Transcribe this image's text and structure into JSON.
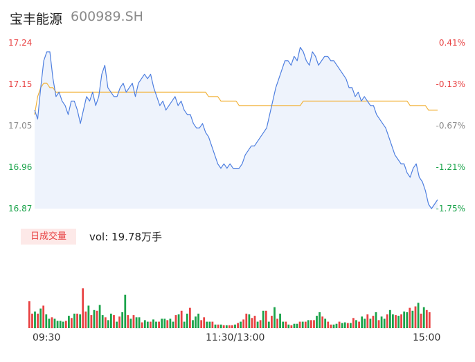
{
  "header": {
    "name": "宝丰能源",
    "code": "600989.SH"
  },
  "colors": {
    "up": "#e84142",
    "down": "#1aa34a",
    "neutral": "#888888",
    "price_line": "#4e7fe0",
    "avg_line": "#f2b33b",
    "area_fill": "#eef3fc"
  },
  "volume": {
    "tag": "日成交量",
    "label": "vol: 19.78万手"
  },
  "chart_data": [
    {
      "type": "line",
      "name": "intraday",
      "price_axis": [
        "17.24",
        "17.15",
        "17.05",
        "16.96",
        "16.87"
      ],
      "pct_axis": [
        "0.41%",
        "-0.13%",
        "-0.67%",
        "-1.21%",
        "-1.75%"
      ],
      "ylim": [
        16.87,
        17.24
      ],
      "x_ticks": [
        "09:30",
        "11:30/13:00",
        "15:00"
      ],
      "series": [
        {
          "name": "price",
          "values": [
            17.09,
            17.07,
            17.14,
            17.2,
            17.22,
            17.22,
            17.16,
            17.12,
            17.13,
            17.11,
            17.1,
            17.08,
            17.11,
            17.11,
            17.09,
            17.06,
            17.09,
            17.12,
            17.11,
            17.13,
            17.1,
            17.12,
            17.17,
            17.19,
            17.14,
            17.13,
            17.12,
            17.12,
            17.14,
            17.15,
            17.13,
            17.14,
            17.15,
            17.12,
            17.15,
            17.16,
            17.17,
            17.16,
            17.17,
            17.14,
            17.12,
            17.1,
            17.11,
            17.09,
            17.1,
            17.11,
            17.12,
            17.1,
            17.11,
            17.09,
            17.08,
            17.08,
            17.06,
            17.05,
            17.05,
            17.06,
            17.04,
            17.03,
            17.01,
            16.99,
            16.97,
            16.96,
            16.97,
            16.96,
            16.97,
            16.96,
            16.96,
            16.96,
            16.97,
            16.99,
            17.0,
            17.01,
            17.01,
            17.02,
            17.03,
            17.04,
            17.05,
            17.08,
            17.11,
            17.14,
            17.16,
            17.18,
            17.2,
            17.2,
            17.19,
            17.21,
            17.2,
            17.23,
            17.22,
            17.2,
            17.19,
            17.22,
            17.21,
            17.19,
            17.2,
            17.21,
            17.21,
            17.2,
            17.2,
            17.19,
            17.18,
            17.17,
            17.16,
            17.14,
            17.14,
            17.12,
            17.13,
            17.11,
            17.12,
            17.11,
            17.1,
            17.1,
            17.08,
            17.07,
            17.06,
            17.05,
            17.03,
            17.01,
            16.99,
            16.98,
            16.97,
            16.97,
            16.95,
            16.94,
            16.96,
            16.97,
            16.94,
            16.93,
            16.91,
            16.88,
            16.87,
            16.88,
            16.89
          ]
        },
        {
          "name": "avg",
          "values": [
            17.08,
            17.12,
            17.14,
            17.15,
            17.15,
            17.14,
            17.14,
            17.13,
            17.13,
            17.13,
            17.13,
            17.13,
            17.13,
            17.13,
            17.13,
            17.13,
            17.13,
            17.13,
            17.13,
            17.13,
            17.13,
            17.13,
            17.13,
            17.13,
            17.13,
            17.13,
            17.13,
            17.13,
            17.13,
            17.13,
            17.13,
            17.13,
            17.13,
            17.13,
            17.13,
            17.13,
            17.13,
            17.13,
            17.13,
            17.13,
            17.13,
            17.13,
            17.13,
            17.13,
            17.13,
            17.13,
            17.13,
            17.13,
            17.13,
            17.13,
            17.13,
            17.13,
            17.13,
            17.13,
            17.13,
            17.13,
            17.13,
            17.12,
            17.12,
            17.12,
            17.12,
            17.11,
            17.11,
            17.11,
            17.11,
            17.11,
            17.11,
            17.1,
            17.1,
            17.1,
            17.1,
            17.1,
            17.1,
            17.1,
            17.1,
            17.1,
            17.1,
            17.1,
            17.1,
            17.1,
            17.1,
            17.1,
            17.1,
            17.1,
            17.1,
            17.1,
            17.1,
            17.1,
            17.11,
            17.11,
            17.11,
            17.11,
            17.11,
            17.11,
            17.11,
            17.11,
            17.11,
            17.11,
            17.11,
            17.11,
            17.11,
            17.11,
            17.11,
            17.11,
            17.11,
            17.11,
            17.11,
            17.11,
            17.11,
            17.11,
            17.11,
            17.11,
            17.11,
            17.11,
            17.11,
            17.11,
            17.11,
            17.11,
            17.11,
            17.11,
            17.11,
            17.11,
            17.11,
            17.1,
            17.1,
            17.1,
            17.1,
            17.1,
            17.1,
            17.09,
            17.09,
            17.09,
            17.09
          ]
        }
      ]
    },
    {
      "type": "bar",
      "name": "volume",
      "series": [
        {
          "name": "volume",
          "values": [
            0.37,
            0.2,
            0.23,
            0.2,
            0.27,
            0.31,
            0.19,
            0.13,
            0.15,
            0.13,
            0.1,
            0.1,
            0.09,
            0.1,
            0.17,
            0.14,
            0.2,
            0.2,
            0.19,
            0.55,
            0.23,
            0.31,
            0.18,
            0.25,
            0.24,
            0.32,
            0.18,
            0.15,
            0.11,
            0.2,
            0.18,
            0.09,
            0.16,
            0.22,
            0.46,
            0.18,
            0.13,
            0.18,
            0.15,
            0.15,
            0.08,
            0.11,
            0.09,
            0.09,
            0.12,
            0.09,
            0.09,
            0.13,
            0.13,
            0.11,
            0.13,
            0.09,
            0.18,
            0.19,
            0.24,
            0.09,
            0.2,
            0.28,
            0.11,
            0.16,
            0.2,
            0.11,
            0.15,
            0.09,
            0.09,
            0.09,
            0.05,
            0.05,
            0.05,
            0.04,
            0.04,
            0.04,
            0.04,
            0.05,
            0.07,
            0.09,
            0.12,
            0.2,
            0.19,
            0.14,
            0.17,
            0.09,
            0.11,
            0.24,
            0.24,
            0.09,
            0.17,
            0.29,
            0.13,
            0.2,
            0.09,
            0.09,
            0.05,
            0.04,
            0.06,
            0.06,
            0.09,
            0.09,
            0.09,
            0.11,
            0.11,
            0.11,
            0.17,
            0.22,
            0.16,
            0.13,
            0.09,
            0.05,
            0.05,
            0.06,
            0.09,
            0.07,
            0.08,
            0.07,
            0.07,
            0.14,
            0.11,
            0.09,
            0.16,
            0.13,
            0.19,
            0.13,
            0.17,
            0.22,
            0.11,
            0.16,
            0.13,
            0.19,
            0.25,
            0.19,
            0.18,
            0.17,
            0.19,
            0.23,
            0.22,
            0.28,
            0.24,
            0.3,
            0.35,
            0.2,
            0.29,
            0.25,
            0.22
          ]
        }
      ],
      "colors": [
        "up",
        "up",
        "down",
        "up",
        "down",
        "up",
        "down",
        "down",
        "up",
        "down",
        "down",
        "down",
        "down",
        "up",
        "down",
        "up",
        "down",
        "up",
        "down",
        "up",
        "up",
        "down",
        "up",
        "down",
        "up",
        "down",
        "down",
        "up",
        "down",
        "down",
        "up",
        "down",
        "up",
        "down",
        "down",
        "up",
        "down",
        "up",
        "down",
        "down",
        "up",
        "down",
        "down",
        "up",
        "down",
        "down",
        "up",
        "down",
        "down",
        "up",
        "down",
        "down",
        "up",
        "down",
        "up",
        "down",
        "down",
        "up",
        "down",
        "down",
        "down",
        "up",
        "up",
        "down",
        "down",
        "up",
        "down",
        "up",
        "down",
        "up",
        "down",
        "up",
        "up",
        "down",
        "up",
        "down",
        "up",
        "up",
        "down",
        "up",
        "up",
        "down",
        "up",
        "down",
        "up",
        "down",
        "up",
        "down",
        "up",
        "down",
        "down",
        "up",
        "down",
        "up",
        "down",
        "down",
        "up",
        "down",
        "up",
        "down",
        "up",
        "up",
        "down",
        "down",
        "up",
        "down",
        "up",
        "up",
        "down",
        "down",
        "up",
        "down",
        "down",
        "up",
        "down",
        "up",
        "down",
        "up",
        "down",
        "down",
        "up",
        "down",
        "up",
        "down",
        "up",
        "down",
        "down",
        "up",
        "down",
        "down",
        "up",
        "down",
        "up",
        "down",
        "down",
        "up",
        "down",
        "up",
        "down",
        "up",
        "down"
      ]
    }
  ]
}
